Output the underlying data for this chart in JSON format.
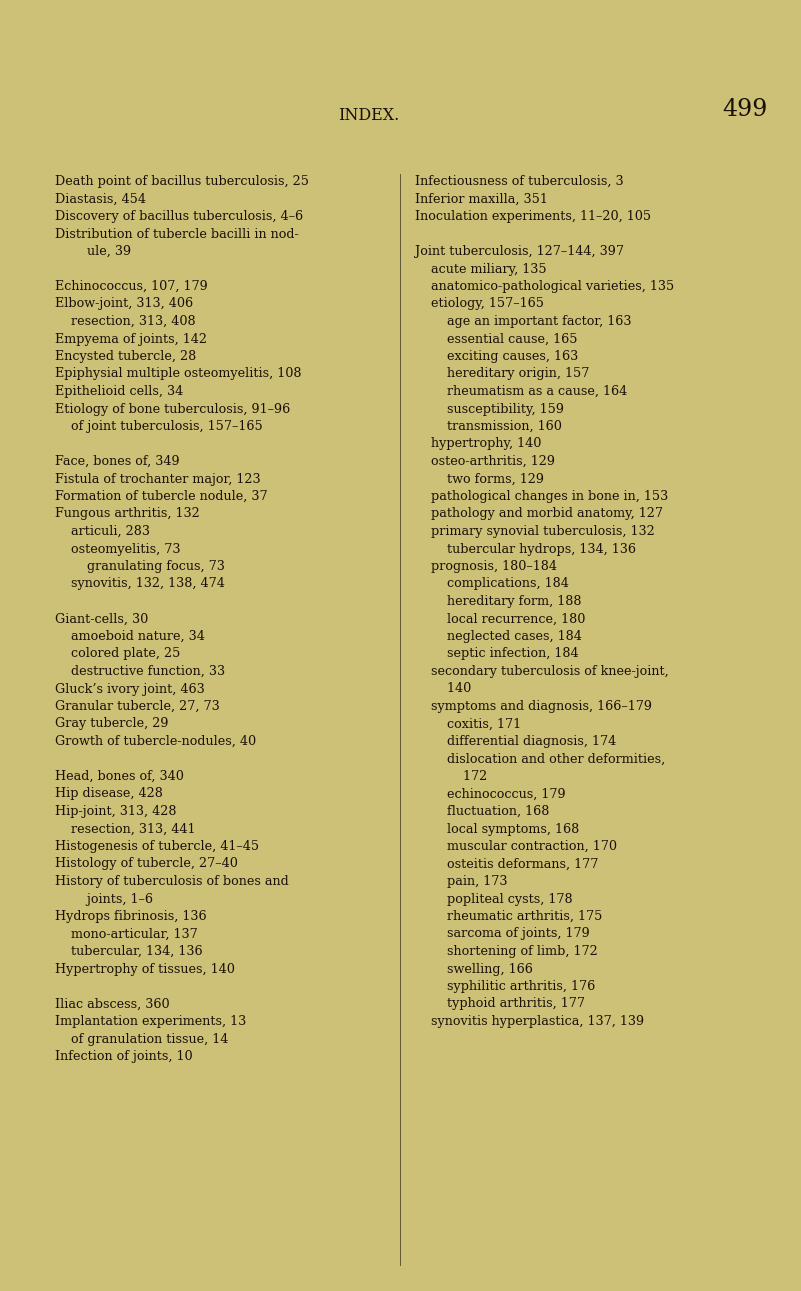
{
  "background_color": "#cdc077",
  "title": "INDEX.",
  "page_number": "499",
  "title_fontsize": 11.5,
  "page_num_fontsize": 17,
  "body_fontsize": 9.2,
  "text_color": "#1a1008",
  "font_family": "DejaVu Serif",
  "fig_width": 8.01,
  "fig_height": 12.91,
  "dpi": 100,
  "left_lines": [
    "Death point of bacillus tuberculosis, 25",
    "Diastasis, 454",
    "Discovery of bacillus tuberculosis, 4–6",
    "Distribution of tubercle bacilli in nod-",
    "        ule, 39",
    "",
    "Echinococcus, 107, 179",
    "Elbow-joint, 313, 406",
    "    resection, 313, 408",
    "Empyema of joints, 142",
    "Encysted tubercle, 28",
    "Epiphysial multiple osteomyelitis, 108",
    "Epithelioid cells, 34",
    "Etiology of bone tuberculosis, 91–96",
    "    of joint tuberculosis, 157–165",
    "",
    "Face, bones of, 349",
    "Fistula of trochanter major, 123",
    "Formation of tubercle nodule, 37",
    "Fungous arthritis, 132",
    "    articuli, 283",
    "    osteomyelitis, 73",
    "        granulating focus, 73",
    "    synovitis, 132, 138, 474",
    "",
    "Giant-cells, 30",
    "    amoeboid nature, 34",
    "    colored plate, 25",
    "    destructive function, 33",
    "Gluck’s ivory joint, 463",
    "Granular tubercle, 27, 73",
    "Gray tubercle, 29",
    "Growth of tubercle-nodules, 40",
    "",
    "Head, bones of, 340",
    "Hip disease, 428",
    "Hip-joint, 313, 428",
    "    resection, 313, 441",
    "Histogenesis of tubercle, 41–45",
    "Histology of tubercle, 27–40",
    "History of tuberculosis of bones and",
    "        joints, 1–6",
    "Hydrops fibrinosis, 136",
    "    mono-articular, 137",
    "    tubercular, 134, 136",
    "Hypertrophy of tissues, 140",
    "",
    "Iliac abscess, 360",
    "Implantation experiments, 13",
    "    of granulation tissue, 14",
    "Infection of joints, 10"
  ],
  "right_lines": [
    "Infectiousness of tuberculosis, 3",
    "Inferior maxilla, 351",
    "Inoculation experiments, 11–20, 105",
    "",
    "Joint tuberculosis, 127–144, 397",
    "    acute miliary, 135",
    "    anatomico-pathological varieties, 135",
    "    etiology, 157–165",
    "        age an important factor, 163",
    "        essential cause, 165",
    "        exciting causes, 163",
    "        hereditary origin, 157",
    "        rheumatism as a cause, 164",
    "        susceptibility, 159",
    "        transmission, 160",
    "    hypertrophy, 140",
    "    osteo-arthritis, 129",
    "        two forms, 129",
    "    pathological changes in bone in, 153",
    "    pathology and morbid anatomy, 127",
    "    primary synovial tuberculosis, 132",
    "        tubercular hydrops, 134, 136",
    "    prognosis, 180–184",
    "        complications, 184",
    "        hereditary form, 188",
    "        local recurrence, 180",
    "        neglected cases, 184",
    "        septic infection, 184",
    "    secondary tuberculosis of knee-joint,",
    "        140",
    "    symptoms and diagnosis, 166–179",
    "        coxitis, 171",
    "        differential diagnosis, 174",
    "        dislocation and other deformities,",
    "            172",
    "        echinococcus, 179",
    "        fluctuation, 168",
    "        local symptoms, 168",
    "        muscular contraction, 170",
    "        osteitis deformans, 177",
    "        pain, 173",
    "        popliteal cysts, 178",
    "        rheumatic arthritis, 175",
    "        sarcoma of joints, 179",
    "        shortening of limb, 172",
    "        swelling, 166",
    "        syphilitic arthritis, 176",
    "        typhoid arthritis, 177",
    "    synovitis hyperplastica, 137, 139"
  ]
}
